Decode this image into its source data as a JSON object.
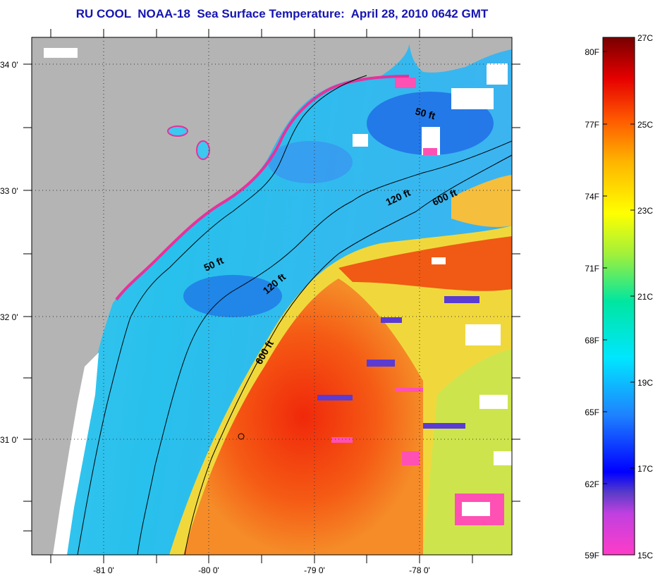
{
  "title": "RU COOL  NOAA-18  Sea Surface Temperature:  April 28, 2010 0642 GMT",
  "map": {
    "lat_labels": [
      "34 0'",
      "33 0'",
      "32 0'",
      "31 0'"
    ],
    "lon_labels": [
      "-81 0'",
      "-80 0'",
      "-79 0'",
      "-78 0'"
    ],
    "contour_labels": [
      "50 ft",
      "120 ft",
      "600 ft",
      "50 ft",
      "120 ft",
      "600 ft"
    ],
    "colors": {
      "land": "#b4b4b4",
      "cloud_mask": "#ffffff",
      "warm_water": "#f03a10",
      "cool_water": "#28c8f0",
      "cold_water": "#1e64e6",
      "contour": "#000000"
    }
  },
  "colorbar": {
    "fahrenheit_labels": [
      "80F",
      "77F",
      "74F",
      "71F",
      "68F",
      "65F",
      "62F",
      "59F"
    ],
    "celsius_labels": [
      "27C",
      "25C",
      "23C",
      "21C",
      "19C",
      "17C",
      "15C"
    ],
    "range_c": [
      15,
      27
    ],
    "range_f": [
      59,
      80.6
    ]
  }
}
